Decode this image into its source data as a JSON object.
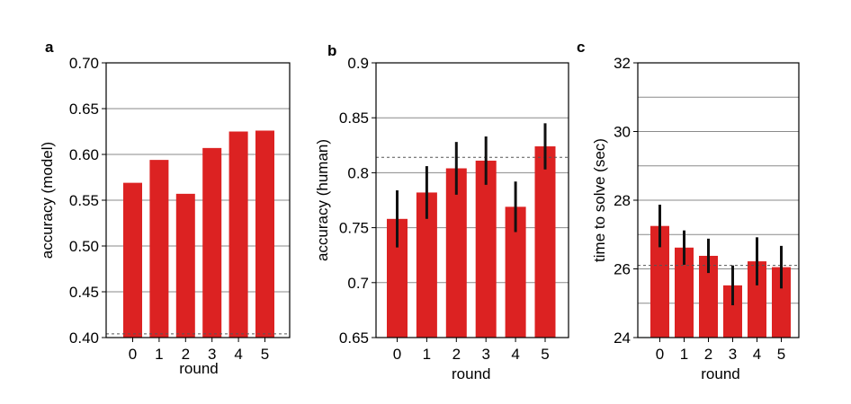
{
  "colors": {
    "bar": "#dc2222",
    "error": "#111111",
    "grid": "#8a8a8a"
  },
  "chart_data": [
    {
      "type": "bar",
      "panel_label": "a",
      "title": "",
      "xlabel": "round",
      "ylabel": "accuracy (model)",
      "categories": [
        "0",
        "1",
        "2",
        "3",
        "4",
        "5"
      ],
      "values": [
        0.569,
        0.594,
        0.557,
        0.607,
        0.625,
        0.626
      ],
      "errors": null,
      "ylim": [
        0.4,
        0.7
      ],
      "yticks": [
        0.4,
        0.45,
        0.5,
        0.55,
        0.6,
        0.65,
        0.7
      ],
      "ytick_labels": [
        "0.40",
        "0.45",
        "0.50",
        "0.55",
        "0.60",
        "0.65",
        "0.70"
      ],
      "minor_gridlines": [],
      "reference_line": 0.404,
      "grid": true
    },
    {
      "type": "bar",
      "panel_label": "b",
      "title": "",
      "xlabel": "round",
      "ylabel": "accuracy (human)",
      "categories": [
        "0",
        "1",
        "2",
        "3",
        "4",
        "5"
      ],
      "values": [
        0.758,
        0.782,
        0.804,
        0.811,
        0.769,
        0.824
      ],
      "errors": [
        0.026,
        0.024,
        0.024,
        0.022,
        0.023,
        0.021
      ],
      "ylim": [
        0.65,
        0.9
      ],
      "yticks": [
        0.65,
        0.7,
        0.75,
        0.8,
        0.85,
        0.9
      ],
      "ytick_labels": [
        "0.65",
        "0.7",
        "0.75",
        "0.8",
        "0.85",
        "0.9"
      ],
      "minor_gridlines": [],
      "reference_line": 0.814,
      "grid": true
    },
    {
      "type": "bar",
      "panel_label": "c",
      "title": "",
      "xlabel": "round",
      "ylabel": "time to solve (sec)",
      "categories": [
        "0",
        "1",
        "2",
        "3",
        "4",
        "5"
      ],
      "values": [
        27.25,
        26.62,
        26.38,
        25.52,
        26.22,
        26.05
      ],
      "errors": [
        0.62,
        0.5,
        0.5,
        0.58,
        0.7,
        0.62
      ],
      "ylim": [
        24,
        32
      ],
      "yticks": [
        24,
        26,
        28,
        30,
        32
      ],
      "ytick_labels": [
        "24",
        "26",
        "28",
        "30",
        "32"
      ],
      "minor_gridlines": [
        25,
        27,
        29,
        31
      ],
      "reference_line": 26.1,
      "grid": true
    }
  ]
}
